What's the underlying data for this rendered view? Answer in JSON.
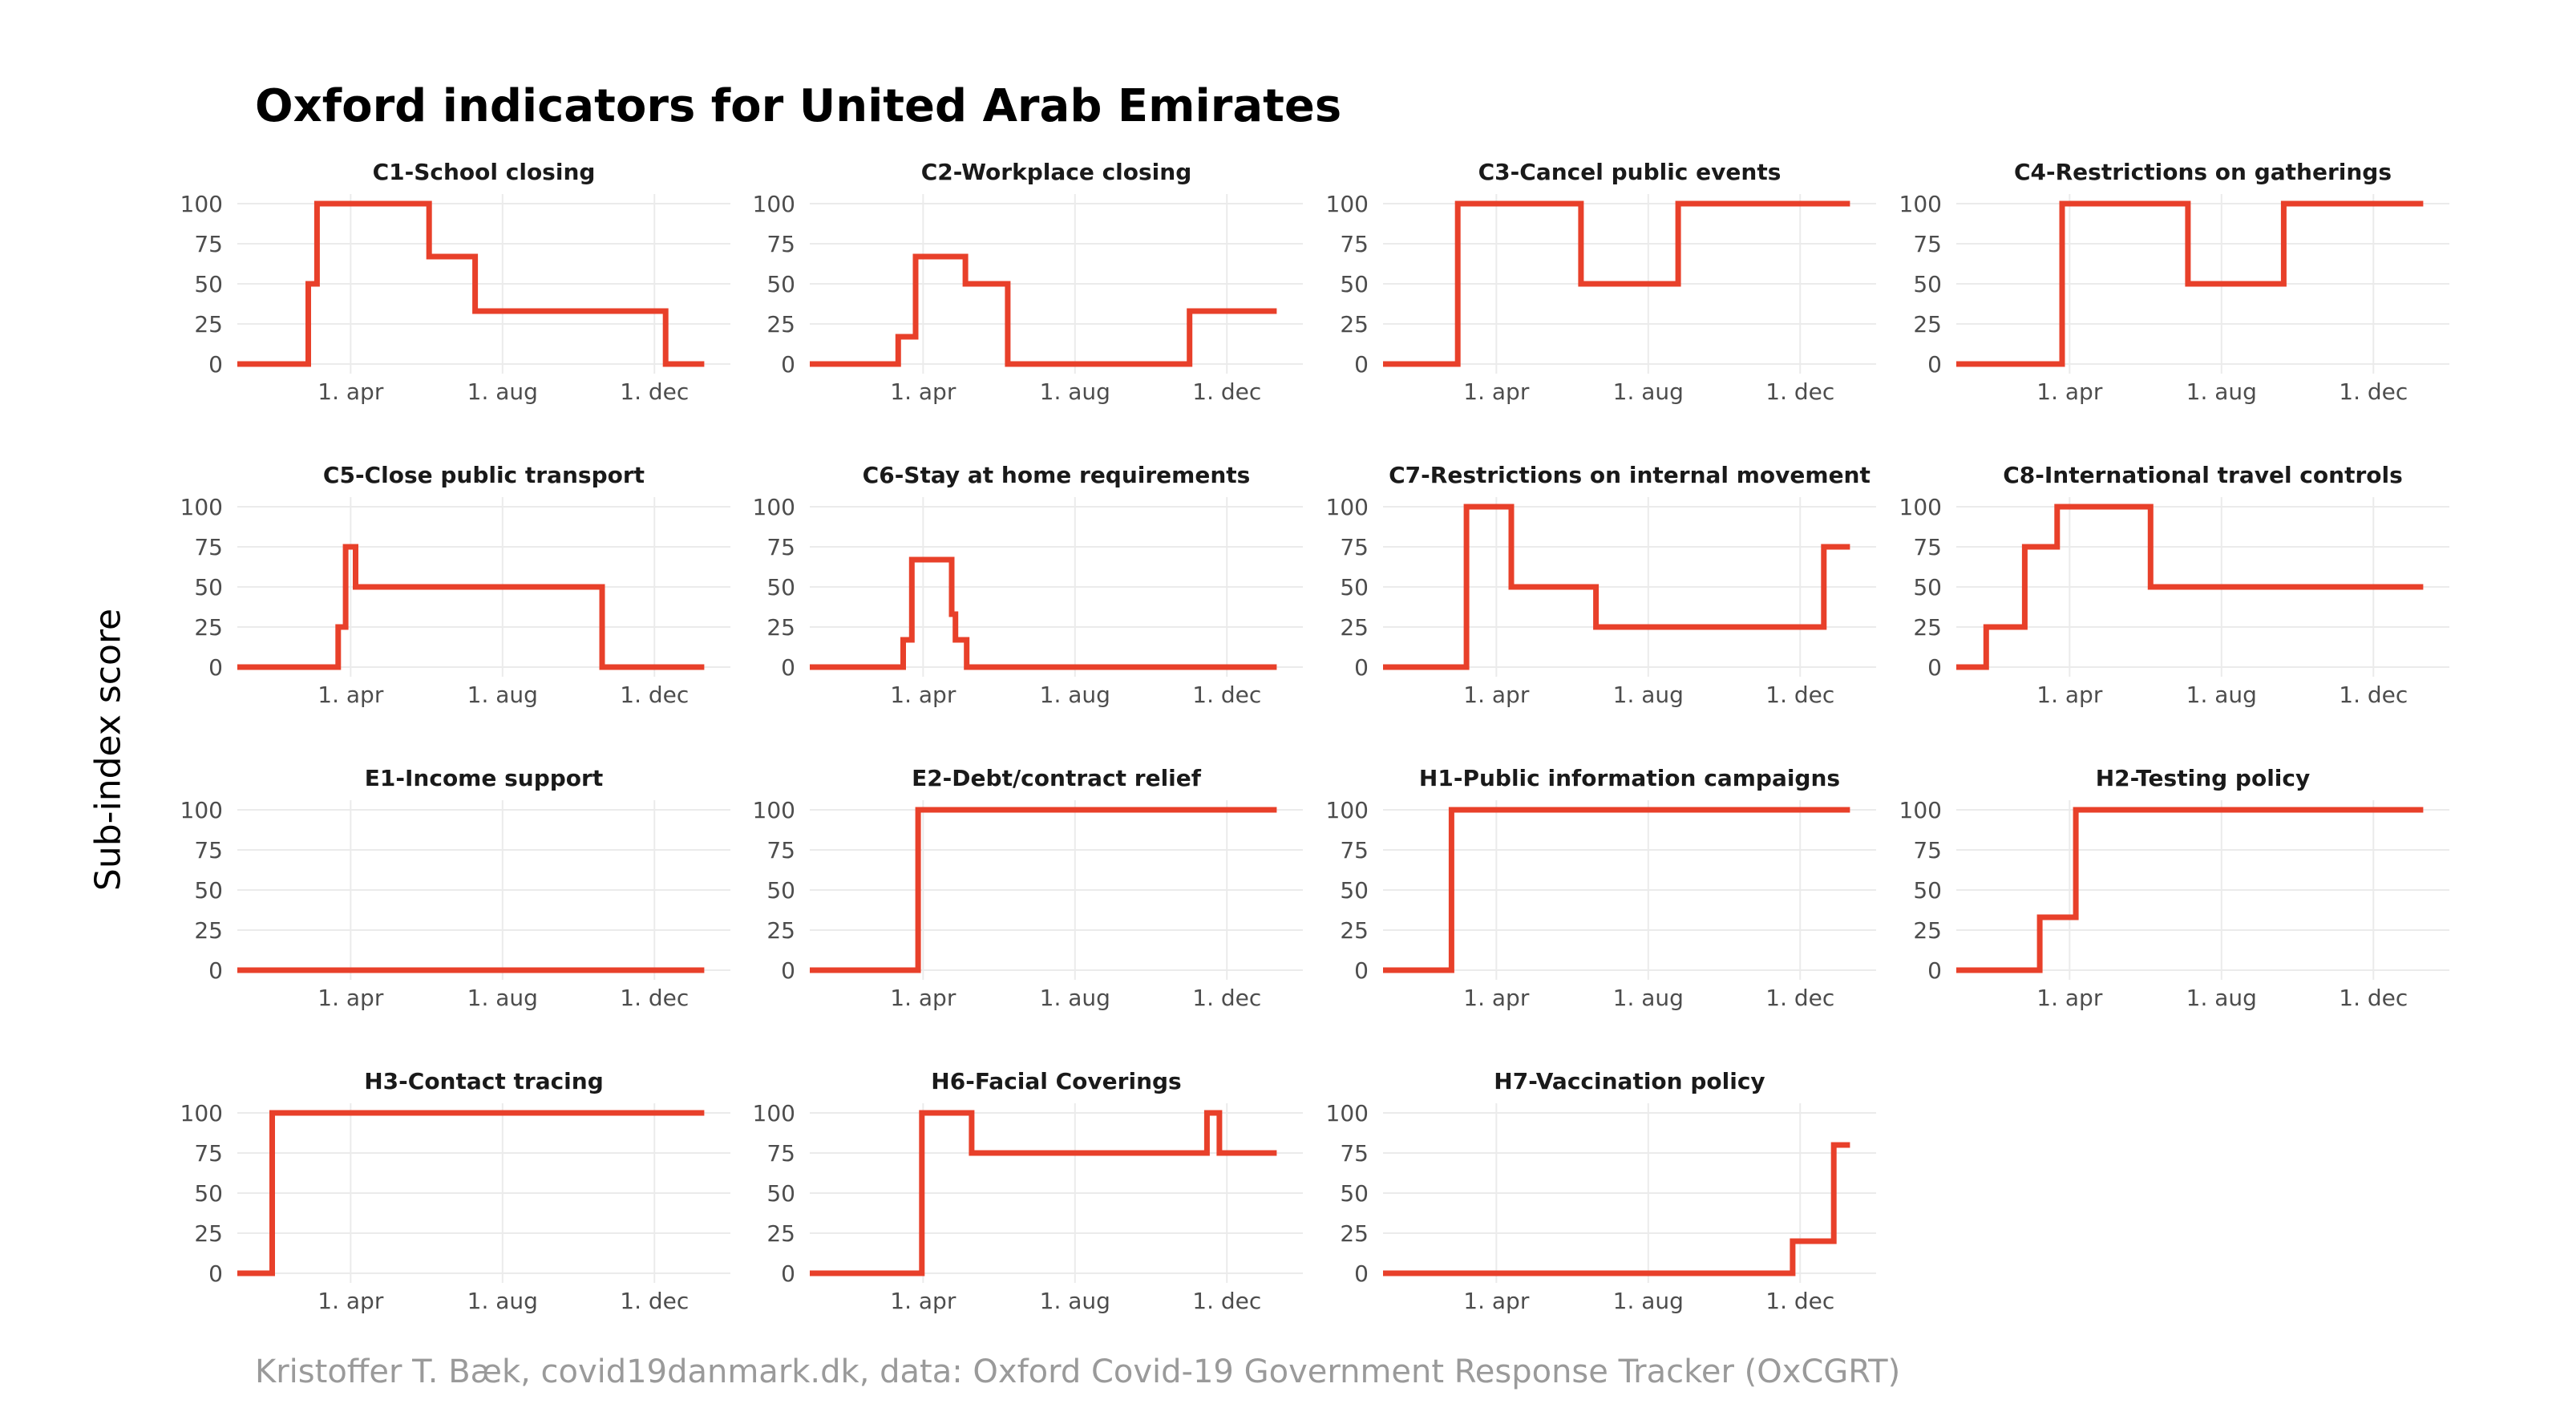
{
  "title": "Oxford indicators for United Arab Emirates",
  "ylabel": "Sub-index score",
  "caption": "Kristoffer T. Bæk, covid19danmark.dk, data: Oxford Covid-19 Government Response Tracker (OxCGRT)",
  "colors": {
    "line": "#e8402a",
    "grid": "#ebebeb"
  },
  "chart_data": {
    "type": "line",
    "ylim": [
      0,
      100
    ],
    "yticks": [
      0,
      25,
      50,
      75,
      100
    ],
    "xlim": [
      "2020-01-01",
      "2021-01-31"
    ],
    "xticks": [
      {
        "date": "2020-04-01",
        "label": "1. apr"
      },
      {
        "date": "2020-08-01",
        "label": "1. aug"
      },
      {
        "date": "2020-12-01",
        "label": "1. dec"
      }
    ],
    "grid": true,
    "panels": [
      {
        "title": "C1-School closing",
        "points": [
          [
            "2020-01-01",
            0
          ],
          [
            "2020-02-27",
            0
          ],
          [
            "2020-02-27",
            50
          ],
          [
            "2020-03-05",
            50
          ],
          [
            "2020-03-05",
            100
          ],
          [
            "2020-06-03",
            100
          ],
          [
            "2020-06-03",
            67
          ],
          [
            "2020-07-10",
            67
          ],
          [
            "2020-07-10",
            33
          ],
          [
            "2020-12-10",
            33
          ],
          [
            "2020-12-10",
            0
          ],
          [
            "2021-01-10",
            0
          ]
        ]
      },
      {
        "title": "C2-Workplace closing",
        "points": [
          [
            "2020-01-01",
            0
          ],
          [
            "2020-03-12",
            0
          ],
          [
            "2020-03-12",
            17
          ],
          [
            "2020-03-26",
            17
          ],
          [
            "2020-03-26",
            67
          ],
          [
            "2020-05-05",
            67
          ],
          [
            "2020-05-05",
            50
          ],
          [
            "2020-06-08",
            50
          ],
          [
            "2020-06-08",
            0
          ],
          [
            "2020-11-01",
            0
          ],
          [
            "2020-11-01",
            33
          ],
          [
            "2021-01-10",
            33
          ]
        ]
      },
      {
        "title": "C3-Cancel public events",
        "points": [
          [
            "2020-01-01",
            0
          ],
          [
            "2020-03-01",
            0
          ],
          [
            "2020-03-01",
            100
          ],
          [
            "2020-06-08",
            100
          ],
          [
            "2020-06-08",
            50
          ],
          [
            "2020-08-25",
            50
          ],
          [
            "2020-08-25",
            100
          ],
          [
            "2021-01-10",
            100
          ]
        ]
      },
      {
        "title": "C4-Restrictions on gatherings",
        "points": [
          [
            "2020-01-01",
            0
          ],
          [
            "2020-03-26",
            0
          ],
          [
            "2020-03-26",
            100
          ],
          [
            "2020-07-05",
            100
          ],
          [
            "2020-07-05",
            50
          ],
          [
            "2020-09-20",
            50
          ],
          [
            "2020-09-20",
            100
          ],
          [
            "2021-01-10",
            100
          ]
        ]
      },
      {
        "title": "C5-Close public transport",
        "points": [
          [
            "2020-01-01",
            0
          ],
          [
            "2020-03-22",
            0
          ],
          [
            "2020-03-22",
            25
          ],
          [
            "2020-03-28",
            25
          ],
          [
            "2020-03-28",
            75
          ],
          [
            "2020-04-05",
            75
          ],
          [
            "2020-04-05",
            50
          ],
          [
            "2020-10-20",
            50
          ],
          [
            "2020-10-20",
            0
          ],
          [
            "2021-01-10",
            0
          ]
        ]
      },
      {
        "title": "C6-Stay at home requirements",
        "points": [
          [
            "2020-01-01",
            0
          ],
          [
            "2020-03-16",
            0
          ],
          [
            "2020-03-16",
            17
          ],
          [
            "2020-03-23",
            17
          ],
          [
            "2020-03-23",
            67
          ],
          [
            "2020-04-24",
            67
          ],
          [
            "2020-04-24",
            33
          ],
          [
            "2020-04-27",
            33
          ],
          [
            "2020-04-27",
            17
          ],
          [
            "2020-05-06",
            17
          ],
          [
            "2020-05-06",
            0
          ],
          [
            "2021-01-10",
            0
          ]
        ]
      },
      {
        "title": "C7-Restrictions on internal movement",
        "points": [
          [
            "2020-01-01",
            0
          ],
          [
            "2020-03-08",
            0
          ],
          [
            "2020-03-08",
            100
          ],
          [
            "2020-04-13",
            100
          ],
          [
            "2020-04-13",
            50
          ],
          [
            "2020-06-20",
            50
          ],
          [
            "2020-06-20",
            25
          ],
          [
            "2020-12-20",
            25
          ],
          [
            "2020-12-20",
            75
          ],
          [
            "2021-01-10",
            75
          ]
        ]
      },
      {
        "title": "C8-International travel controls",
        "points": [
          [
            "2020-01-01",
            0
          ],
          [
            "2020-01-25",
            0
          ],
          [
            "2020-01-25",
            25
          ],
          [
            "2020-02-25",
            25
          ],
          [
            "2020-02-25",
            75
          ],
          [
            "2020-03-22",
            75
          ],
          [
            "2020-03-22",
            100
          ],
          [
            "2020-06-05",
            100
          ],
          [
            "2020-06-05",
            50
          ],
          [
            "2021-01-10",
            50
          ]
        ]
      },
      {
        "title": "E1-Income support",
        "points": [
          [
            "2020-01-01",
            0
          ],
          [
            "2021-01-10",
            0
          ]
        ]
      },
      {
        "title": "E2-Debt/contract relief",
        "points": [
          [
            "2020-01-01",
            0
          ],
          [
            "2020-03-28",
            0
          ],
          [
            "2020-03-28",
            100
          ],
          [
            "2021-01-10",
            100
          ]
        ]
      },
      {
        "title": "H1-Public information campaigns",
        "points": [
          [
            "2020-01-01",
            0
          ],
          [
            "2020-02-25",
            0
          ],
          [
            "2020-02-25",
            100
          ],
          [
            "2021-01-10",
            100
          ]
        ]
      },
      {
        "title": "H2-Testing policy",
        "points": [
          [
            "2020-01-01",
            0
          ],
          [
            "2020-03-08",
            0
          ],
          [
            "2020-03-08",
            33
          ],
          [
            "2020-04-06",
            33
          ],
          [
            "2020-04-06",
            100
          ],
          [
            "2021-01-10",
            100
          ]
        ]
      },
      {
        "title": "H3-Contact tracing",
        "points": [
          [
            "2020-01-01",
            0
          ],
          [
            "2020-01-29",
            0
          ],
          [
            "2020-01-29",
            100
          ],
          [
            "2021-01-10",
            100
          ]
        ]
      },
      {
        "title": "H6-Facial Coverings",
        "points": [
          [
            "2020-01-01",
            0
          ],
          [
            "2020-03-31",
            0
          ],
          [
            "2020-03-31",
            100
          ],
          [
            "2020-05-10",
            100
          ],
          [
            "2020-05-10",
            75
          ],
          [
            "2020-11-15",
            75
          ],
          [
            "2020-11-15",
            100
          ],
          [
            "2020-11-25",
            100
          ],
          [
            "2020-11-25",
            75
          ],
          [
            "2021-01-10",
            75
          ]
        ]
      },
      {
        "title": "H7-Vaccination policy",
        "points": [
          [
            "2020-01-01",
            0
          ],
          [
            "2020-11-25",
            0
          ],
          [
            "2020-11-25",
            20
          ],
          [
            "2020-12-28",
            20
          ],
          [
            "2020-12-28",
            80
          ],
          [
            "2021-01-10",
            80
          ]
        ]
      }
    ]
  }
}
